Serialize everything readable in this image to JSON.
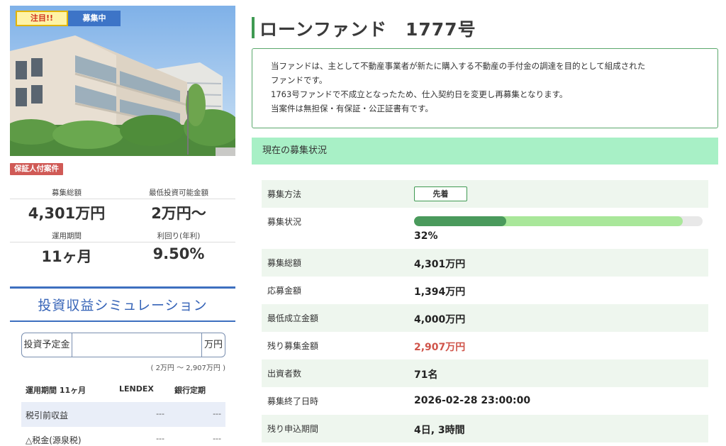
{
  "badges": {
    "attention": "注目!!",
    "recruiting": "募集中",
    "guarantee": "保証人付案件"
  },
  "summary": {
    "total_label": "募集総額",
    "total_value": "4,301万円",
    "min_label": "最低投資可能金額",
    "min_value": "2万円〜",
    "period_label": "運用期間",
    "period_value": "11ヶ月",
    "yield_label": "利回り(年利)",
    "yield_value": "9.50%"
  },
  "simulation": {
    "title": "投資収益シミュレーション",
    "input_label": "投資予定金額",
    "input_value": "",
    "input_unit": "万円",
    "range_note": "( 2万円 〜 2,907万円 )",
    "columns": [
      "運用期間 11ヶ月",
      "LENDEX",
      "銀行定期"
    ],
    "rows": [
      {
        "label": "税引前収益",
        "lendex": "---",
        "bank": "---"
      },
      {
        "label": "△税金(源泉税)",
        "lendex": "---",
        "bank": "---"
      }
    ]
  },
  "fund": {
    "title": "ローンファンド　1777号",
    "description": [
      "当ファンドは、主として不動産事業者が新たに購入する不動産の手付金の調達を目的として組成された",
      "ファンドです。",
      "1763号ファンドで不成立となったため、仕入契約日を変更し再募集となります。",
      "当案件は無担保・有保証・公正証書有です。"
    ]
  },
  "status": {
    "header": "現在の募集状況",
    "method_label": "募集方法",
    "method_value": "先着",
    "progress_label": "募集状況",
    "progress_text": "32%",
    "progress_fraction": 0.32,
    "progress_target_fraction": 0.93,
    "total_label": "募集総額",
    "total_value": "4,301万円",
    "applied_label": "応募金額",
    "applied_value": "1,394万円",
    "min_label": "最低成立金額",
    "min_value": "4,000万円",
    "remaining_label": "残り募集金額",
    "remaining_value": "2,907万円",
    "investors_label": "出資者数",
    "investors_value": "71名",
    "end_label": "募集終了日時",
    "end_value": "2026-02-28 23:00:00",
    "left_label": "残り申込期間",
    "left_value": "4日, 3時間"
  },
  "colors": {
    "accent_green": "#3f9a52",
    "header_green": "#a8f0c6",
    "accent_blue": "#3d6fbf",
    "alert_red": "#d0544a"
  }
}
